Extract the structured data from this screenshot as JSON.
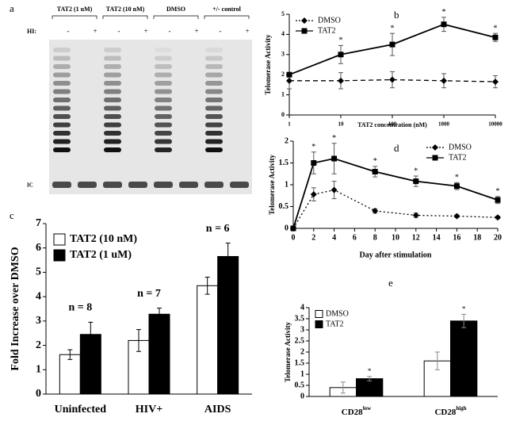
{
  "gel": {
    "label": "a",
    "lanes": [
      "TAT2 (1 uM)",
      "TAT2 (10 nM)",
      "DMSO",
      "+/- control"
    ],
    "hi_label": "HI:",
    "hi_signs": [
      "-",
      "+",
      "-",
      "+",
      "-",
      "+",
      "-",
      "+"
    ],
    "ic": "IC"
  },
  "chart_data": [
    {
      "type": "line",
      "label": "b",
      "xscale": "log",
      "xlabel": "TAT2 concentration (nM)",
      "ylabel": "Telomerase Activity",
      "x": [
        1,
        10,
        100,
        1000,
        10000
      ],
      "xlim": [
        1,
        10000
      ],
      "xticks": [
        1,
        10,
        100,
        1000,
        10000
      ],
      "ylim": [
        0,
        5
      ],
      "yticks": [
        0,
        1,
        2,
        3,
        4,
        5
      ],
      "legend": "upper-left",
      "grid": false,
      "series": [
        {
          "name": "DMSO",
          "color": "#000000",
          "dash": true,
          "marker": "diamond",
          "values": [
            1.7,
            1.7,
            1.75,
            1.7,
            1.65
          ],
          "errors": [
            0.4,
            0.4,
            0.4,
            0.35,
            0.3
          ]
        },
        {
          "name": "TAT2",
          "color": "#000000",
          "dash": false,
          "marker": "square",
          "values": [
            2.0,
            3.0,
            3.5,
            4.5,
            3.85
          ],
          "errors": [
            0.1,
            0.45,
            0.55,
            0.35,
            0.2
          ],
          "significance": [
            null,
            "*",
            "*",
            "*",
            "*"
          ]
        }
      ]
    },
    {
      "type": "bar",
      "label": "c",
      "ylabel": "Fold Increase over DMSO",
      "categories": [
        "Uninfected",
        "HIV+",
        "AIDS"
      ],
      "ylim": [
        0,
        7
      ],
      "yticks": [
        0,
        1,
        2,
        3,
        4,
        5,
        6,
        7
      ],
      "legend": "upper-left",
      "grid": false,
      "group_labels": [
        "n = 8",
        "n = 7",
        "n = 6"
      ],
      "series": [
        {
          "name": "TAT2 (10 nM)",
          "color": "#ffffff",
          "values": [
            1.62,
            2.2,
            4.45
          ],
          "errors": [
            0.2,
            0.45,
            0.35
          ]
        },
        {
          "name": "TAT2 (1 uM)",
          "color": "#000000",
          "values": [
            2.45,
            3.28,
            5.65
          ],
          "errors": [
            0.5,
            0.25,
            0.55
          ]
        }
      ]
    },
    {
      "type": "line",
      "label": "d",
      "xlabel": "Day after stimulation",
      "ylabel": "Telomerase Activity",
      "x": [
        0,
        2,
        4,
        8,
        12,
        16,
        20
      ],
      "xlim": [
        0,
        20
      ],
      "xticks": [
        0,
        2,
        4,
        6,
        8,
        10,
        12,
        14,
        16,
        18,
        20
      ],
      "ylim": [
        0,
        2
      ],
      "yticks": [
        0,
        0.5,
        1,
        1.5,
        2
      ],
      "legend": "upper-right",
      "grid": false,
      "series": [
        {
          "name": "DMSO",
          "color": "#000000",
          "dash": true,
          "marker": "diamond",
          "values": [
            0,
            0.78,
            0.88,
            0.4,
            0.3,
            0.28,
            0.25
          ],
          "errors": [
            0,
            0.15,
            0.2,
            0.05,
            0.05,
            0.03,
            0.03
          ]
        },
        {
          "name": "TAT2",
          "color": "#000000",
          "dash": false,
          "marker": "square",
          "values": [
            0,
            1.5,
            1.6,
            1.3,
            1.08,
            0.97,
            0.65
          ],
          "errors": [
            0,
            0.25,
            0.35,
            0.12,
            0.12,
            0.08,
            0.08
          ],
          "significance": [
            null,
            "*",
            "*",
            "*",
            "*",
            "*",
            "*"
          ]
        }
      ]
    },
    {
      "type": "bar",
      "label": "e",
      "ylabel": "Telomerase Activity",
      "categories": [
        "CD28",
        "CD28"
      ],
      "category_superscripts": [
        "low",
        "high"
      ],
      "ylim": [
        0,
        4
      ],
      "yticks": [
        0,
        0.5,
        1,
        1.5,
        2,
        2.5,
        3,
        3.5,
        4
      ],
      "legend": "upper-left",
      "grid": false,
      "series": [
        {
          "name": "DMSO",
          "color": "#ffffff",
          "values": [
            0.4,
            1.6
          ],
          "errors": [
            0.25,
            0.4
          ]
        },
        {
          "name": "TAT2",
          "color": "#000000",
          "values": [
            0.8,
            3.4
          ],
          "errors": [
            0.1,
            0.3
          ],
          "significance": [
            "*",
            "*"
          ]
        }
      ]
    }
  ]
}
